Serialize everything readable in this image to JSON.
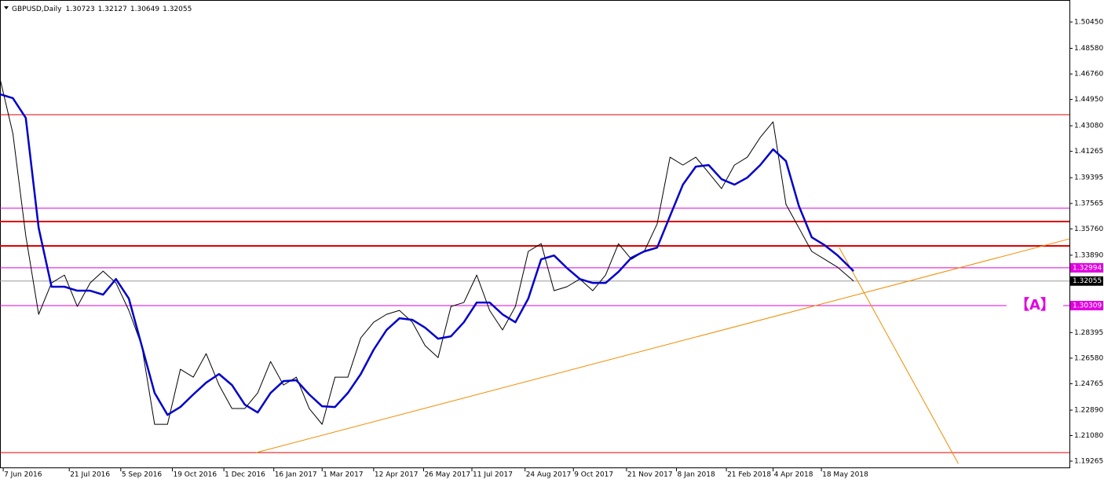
{
  "chart_data": {
    "type": "line",
    "title": "GBPUSD,Daily",
    "quote": [
      1.30723,
      1.32127,
      1.30649,
      1.32055
    ],
    "x": [
      0,
      8,
      16,
      24,
      32,
      40,
      48,
      56,
      64,
      72,
      80,
      88,
      96,
      104,
      112,
      120,
      128,
      136,
      144,
      152,
      160,
      168,
      176,
      184,
      192,
      200,
      208,
      216,
      224,
      232,
      240,
      248,
      256,
      264,
      272,
      280,
      288,
      296,
      304,
      312,
      320,
      328,
      336,
      344,
      352,
      360,
      368,
      376,
      384,
      392,
      400,
      408,
      416,
      424,
      432,
      440,
      448,
      456,
      464,
      472,
      480,
      488,
      496,
      504,
      512,
      520,
      530
    ],
    "series": [
      {
        "color": "#000000",
        "values": [
          1.4643,
          1.4253,
          1.3527,
          1.2969,
          1.3192,
          1.3248,
          1.3025,
          1.3192,
          1.3276,
          1.3192,
          1.2997,
          1.2746,
          1.2188,
          1.2188,
          1.2579,
          1.2523,
          1.269,
          1.2467,
          1.23,
          1.23,
          1.2411,
          1.2634,
          1.2467,
          1.2523,
          1.23,
          1.2188,
          1.2523,
          1.2523,
          1.2802,
          1.2913,
          1.2969,
          1.2997,
          1.2913,
          1.2746,
          1.2662,
          1.3025,
          1.3053,
          1.3248,
          1.2997,
          1.2858,
          1.3025,
          1.3416,
          1.3471,
          1.3137,
          1.3165,
          1.322,
          1.3137,
          1.3248,
          1.3471,
          1.336,
          1.3416,
          1.3611,
          1.4085,
          1.4029,
          1.4085,
          1.3974,
          1.3862,
          1.4029,
          1.4085,
          1.4225,
          1.4336,
          1.375,
          1.3583,
          1.3416,
          1.336,
          1.3304,
          1.32055
        ]
      },
      {
        "color": "#0000cc",
        "values": [
          1.4532,
          1.4504,
          1.4364,
          1.3583,
          1.3165,
          1.3165,
          1.3137,
          1.3137,
          1.3109,
          1.322,
          1.3081,
          1.2746,
          1.2411,
          1.2255,
          1.2311,
          1.24,
          1.2484,
          1.2545,
          1.2467,
          1.2328,
          1.2272,
          1.2411,
          1.2495,
          1.2501,
          1.24,
          1.2316,
          1.2311,
          1.2411,
          1.2545,
          1.2718,
          1.2858,
          1.2941,
          1.293,
          1.2874,
          1.2796,
          1.2813,
          1.2913,
          1.3053,
          1.3053,
          1.2969,
          1.2913,
          1.3081,
          1.336,
          1.3387,
          1.3298,
          1.322,
          1.3192,
          1.3192,
          1.3271,
          1.3371,
          1.3416,
          1.3443,
          1.3667,
          1.389,
          1.4018,
          1.4029,
          1.3929,
          1.389,
          1.394,
          1.4029,
          1.4141,
          1.4057,
          1.3739,
          1.3516,
          1.346,
          1.3388,
          1.3276
        ]
      }
    ],
    "levels": [
      {
        "value": 1.4387,
        "color": "#e00000"
      },
      {
        "value": 1.3723,
        "color": "#e000e0"
      },
      {
        "value": 1.3628,
        "color": "#e00000",
        "bold": true
      },
      {
        "value": 1.3455,
        "color": "#e00000",
        "bold": true
      },
      {
        "value": 1.32994,
        "color": "#e000e0",
        "tag": true
      },
      {
        "value": 1.30309,
        "color": "#e000e0",
        "tag": true,
        "annotation": "【A】"
      },
      {
        "value": 1.1987,
        "color": "#e00000"
      }
    ],
    "trendlines": [
      {
        "x": [
          159,
          664
        ],
        "y": [
          1.1987,
          1.3505
        ],
        "color": "#f08c00"
      },
      {
        "x": [
          521,
          595
        ],
        "y": [
          1.3444,
          1.1909
        ],
        "color": "#f08c00"
      }
    ],
    "xlim": [
      0,
      664
    ],
    "ylim": [
      1.18763,
      1.52012
    ],
    "xticks": [
      {
        "value": 2,
        "label": "7 Jun 2016"
      },
      {
        "value": 43,
        "label": "21 Jul 2016"
      },
      {
        "value": 75,
        "label": "5 Sep 2016"
      },
      {
        "value": 107,
        "label": "19 Oct 2016"
      },
      {
        "value": 139,
        "label": "1 Dec 2016"
      },
      {
        "value": 170,
        "label": "16 Jan 2017"
      },
      {
        "value": 200,
        "label": "1 Mar 2017"
      },
      {
        "value": 232,
        "label": "12 Apr 2017"
      },
      {
        "value": 263,
        "label": "26 May 2017"
      },
      {
        "value": 293,
        "label": "11 Jul 2017"
      },
      {
        "value": 326,
        "label": "24 Aug 2017"
      },
      {
        "value": 356,
        "label": "9 Oct 2017"
      },
      {
        "value": 389,
        "label": "21 Nov 2017"
      },
      {
        "value": 420,
        "label": "8 Jan 2018"
      },
      {
        "value": 451,
        "label": "21 Feb 2018"
      },
      {
        "value": 480,
        "label": "4 Apr 2018"
      },
      {
        "value": 510,
        "label": "18 May 2018"
      }
    ],
    "yticks": [
      {
        "value": 1.5045,
        "label": "1.50450"
      },
      {
        "value": 1.4858,
        "label": "1.48580"
      },
      {
        "value": 1.4676,
        "label": "1.46760"
      },
      {
        "value": 1.4495,
        "label": "1.44950"
      },
      {
        "value": 1.4308,
        "label": "1.43080"
      },
      {
        "value": 1.41265,
        "label": "1.41265"
      },
      {
        "value": 1.39395,
        "label": "1.39395"
      },
      {
        "value": 1.37565,
        "label": "1.37565"
      },
      {
        "value": 1.3576,
        "label": "1.35760"
      },
      {
        "value": 1.3389,
        "label": "1.33890"
      },
      {
        "value": 1.28395,
        "label": "1.28395"
      },
      {
        "value": 1.2658,
        "label": "1.26580"
      },
      {
        "value": 1.24765,
        "label": "1.24765"
      },
      {
        "value": 1.2289,
        "label": "1.22890"
      },
      {
        "value": 1.2108,
        "label": "1.21080"
      },
      {
        "value": 1.19265,
        "label": "1.19265"
      }
    ]
  }
}
